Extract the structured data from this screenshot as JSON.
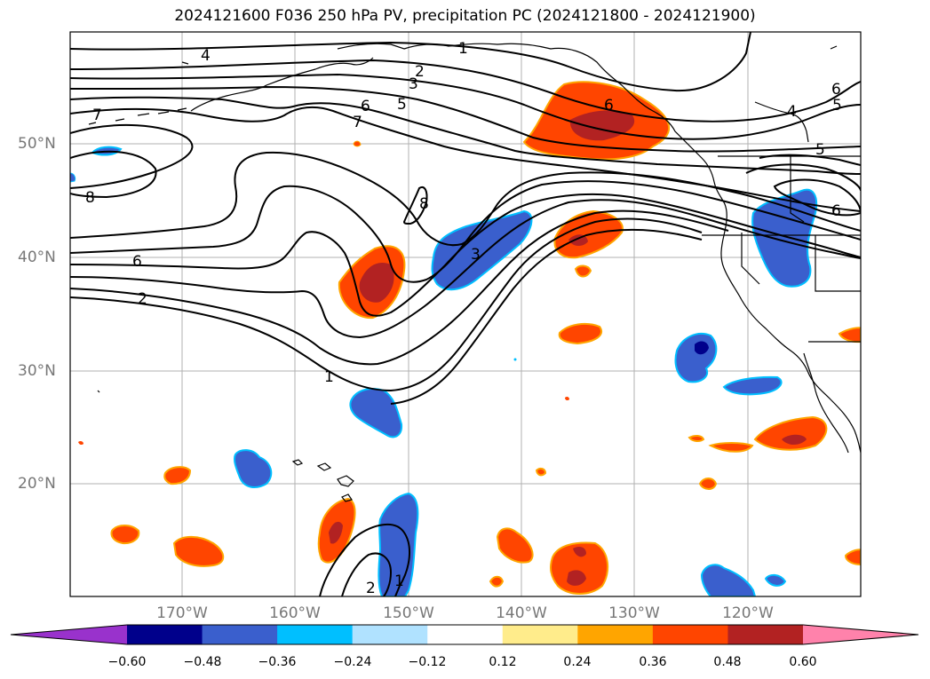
{
  "title": "2024121600 F036 250 hPa PV, precipitation PC (2024121800 - 2024121900)",
  "map": {
    "lat_labels": [
      "50°N",
      "40°N",
      "30°N",
      "20°N"
    ],
    "lon_labels": [
      "170°W",
      "160°W",
      "150°W",
      "140°W",
      "130°W",
      "120°W"
    ],
    "pv_contour_labels": [
      "4",
      "1",
      "2",
      "3",
      "5",
      "6",
      "7",
      "8",
      "6",
      "2",
      "1",
      "3",
      "8",
      "7",
      "6",
      "5",
      "4",
      "6",
      "5",
      "6",
      "1",
      "2"
    ]
  },
  "colorbar": {
    "ticks": [
      "−0.60",
      "−0.48",
      "−0.36",
      "−0.24",
      "−0.12",
      "0.12",
      "0.24",
      "0.36",
      "0.48",
      "0.60"
    ],
    "colors": [
      "#9932cc",
      "#00008b",
      "#3a5fcd",
      "#00bfff",
      "#b0e2ff",
      "#ffffff",
      "#ffec8b",
      "#ffa500",
      "#ff4500",
      "#b22222",
      "#ff82ab"
    ]
  }
}
